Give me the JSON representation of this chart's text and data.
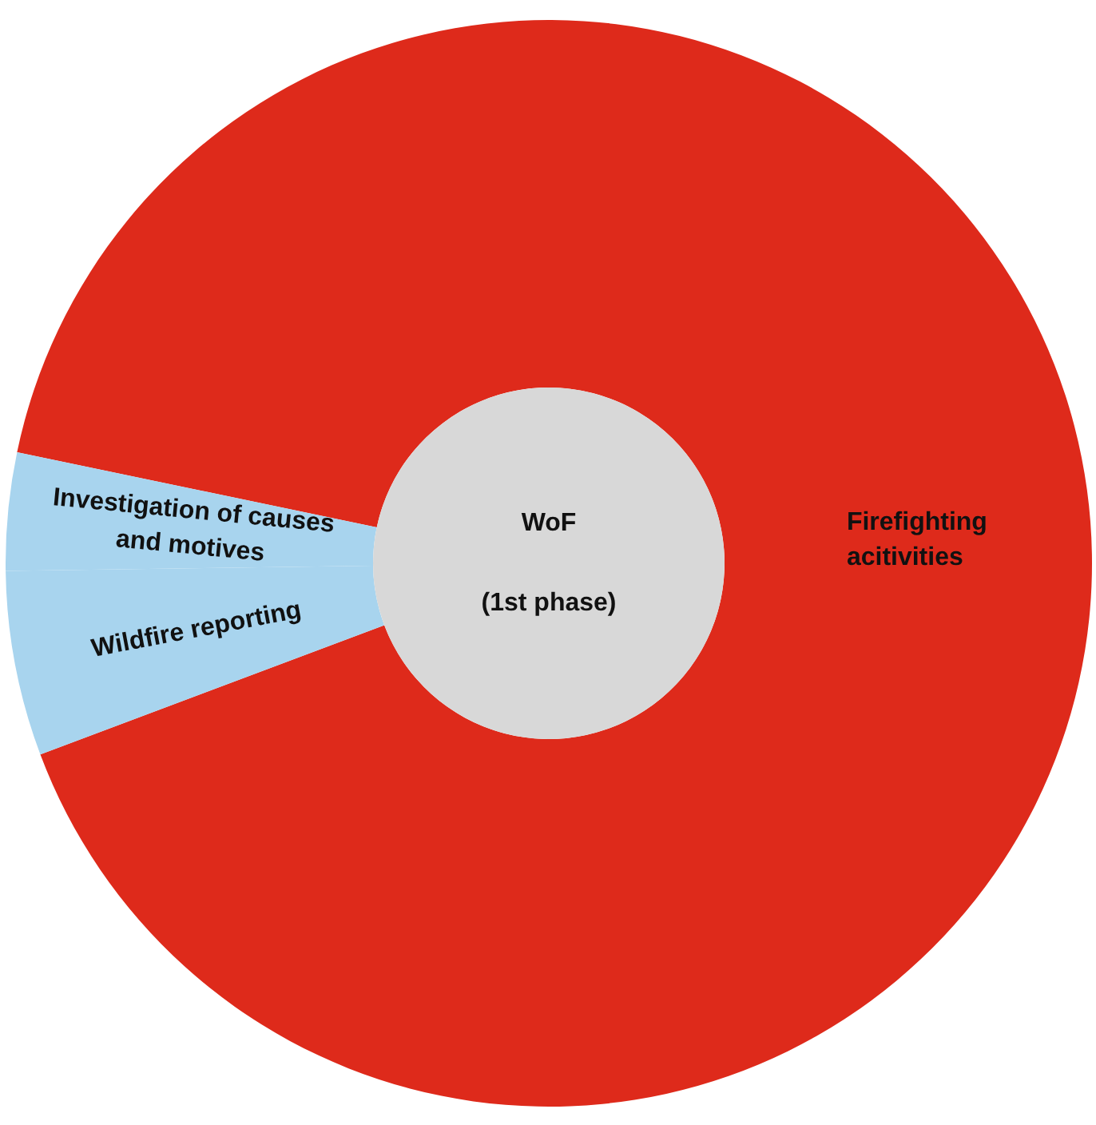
{
  "chart_data": {
    "type": "donut",
    "categories": [
      "Firefighting acitivities",
      "Investigation of causes and motives",
      "Wildfire reporting"
    ],
    "values": [
      91,
      3.5,
      5.5
    ],
    "colors": [
      "#de2a1b",
      "#a8d4ee",
      "#a8d4ee"
    ],
    "annotations": [
      "WoF",
      "(1st phase)"
    ]
  }
}
